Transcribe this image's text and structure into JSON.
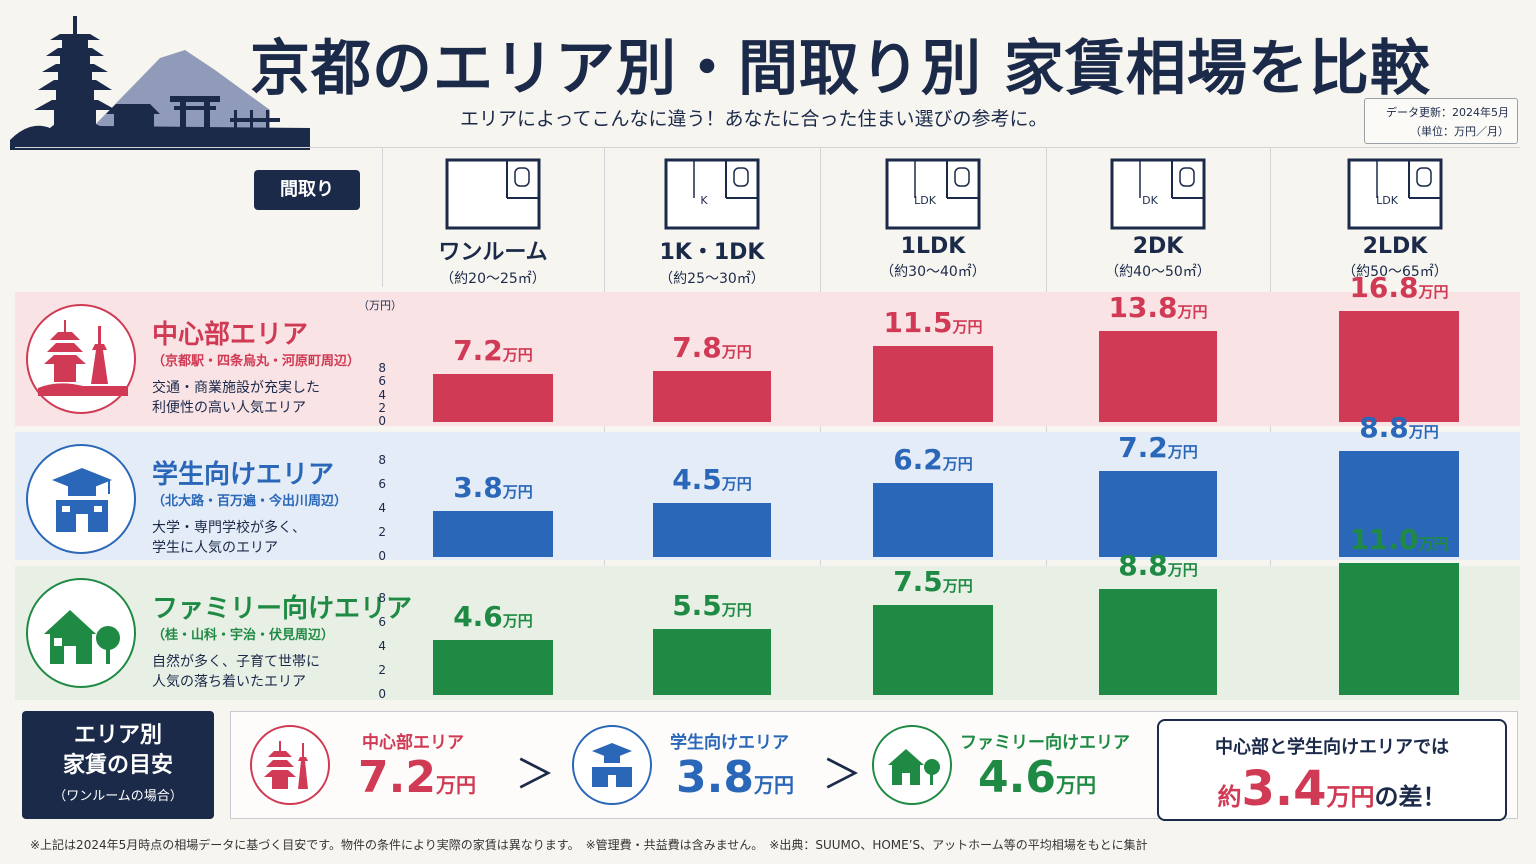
{
  "title": "京都のエリア別・間取り別 家賃相場を比較",
  "subtitle": "エリアによってこんなに違う！あなたに合った住まい選びの参考に。",
  "update": {
    "line1": "データ更新：2024年5月",
    "line2": "（単位：万円／月）"
  },
  "madori_label": "間取り",
  "unit_label": "（万円）",
  "value_suffix": "万円",
  "columns": [
    {
      "name": "ワンルーム",
      "size": "（約20～25㎡）"
    },
    {
      "name": "1K・1DK",
      "size": "（約25～30㎡）"
    },
    {
      "name": "1LDK",
      "size": "（約30～40㎡）"
    },
    {
      "name": "2DK",
      "size": "（約40～50㎡）"
    },
    {
      "name": "2LDK",
      "size": "（約50～65㎡）"
    }
  ],
  "plan_labels": {
    "k": "K",
    "ldk": "LDK",
    "dk": "DK"
  },
  "areas": [
    {
      "name": "中心部エリア",
      "sub": "（京都駅・四条烏丸・河原町周辺）",
      "desc1": "交通・商業施設が充実した",
      "desc2": "利便性の高い人気エリア",
      "color": "#d03a54",
      "bg": "#f9e3e5",
      "icon": "pagoda-tower-icon"
    },
    {
      "name": "学生向けエリア",
      "sub": "（北大路・百万遍・今出川周辺）",
      "desc1": "大学・専門学校が多く、",
      "desc2": "学生に人気のエリア",
      "color": "#2a67b8",
      "bg": "#e3ecf7",
      "icon": "graduation-school-icon"
    },
    {
      "name": "ファミリー向けエリア",
      "sub": "（桂・山科・宇治・伏見周辺）",
      "desc1": "自然が多く、子育て世帯に",
      "desc2": "人気の落ち着いたエリア",
      "color": "#1f8a43",
      "bg": "#e8f0e6",
      "icon": "house-tree-icon"
    }
  ],
  "chart_data": {
    "type": "bar",
    "categories": [
      "ワンルーム",
      "1K・1DK",
      "1LDK",
      "2DK",
      "2LDK"
    ],
    "ylabel": "（万円）",
    "yticks": [
      0,
      2,
      4,
      6,
      8
    ],
    "series": [
      {
        "name": "中心部エリア",
        "values": [
          7.2,
          7.8,
          11.5,
          13.8,
          16.8
        ],
        "labels": [
          "7.2",
          "7.8",
          "11.5",
          "13.8",
          "16.8"
        ]
      },
      {
        "name": "学生向けエリア",
        "values": [
          3.8,
          4.5,
          6.2,
          7.2,
          8.8
        ],
        "labels": [
          "3.8",
          "4.5",
          "6.2",
          "7.2",
          "8.8"
        ]
      },
      {
        "name": "ファミリー向けエリア",
        "values": [
          4.6,
          5.5,
          7.5,
          8.8,
          11.0
        ],
        "labels": [
          "4.6",
          "5.5",
          "7.5",
          "8.8",
          "11.0"
        ]
      }
    ]
  },
  "summary": {
    "left_line1": "エリア別",
    "left_line2": "家賃の目安",
    "left_line3": "（ワンルームの場合）",
    "items": [
      {
        "name": "中心部エリア",
        "value": "7.2",
        "unit": "万円"
      },
      {
        "name": "学生向けエリア",
        "value": "3.8",
        "unit": "万円"
      },
      {
        "name": "ファミリー向けエリア",
        "value": "4.6",
        "unit": "万円"
      }
    ],
    "gt": "＞",
    "diff_line1": "中心部と学生向けエリアでは",
    "diff_prefix": "約",
    "diff_value": "3.4",
    "diff_unit": "万円",
    "diff_suffix": "の差！"
  },
  "footnote": "※上記は2024年5月時点の相場データに基づく目安です。物件の条件により実際の家賃は異なります。　※管理費・共益費は含みません。　※出典：SUUMO、HOME’S、アットホーム等の平均相場をもとに集計"
}
